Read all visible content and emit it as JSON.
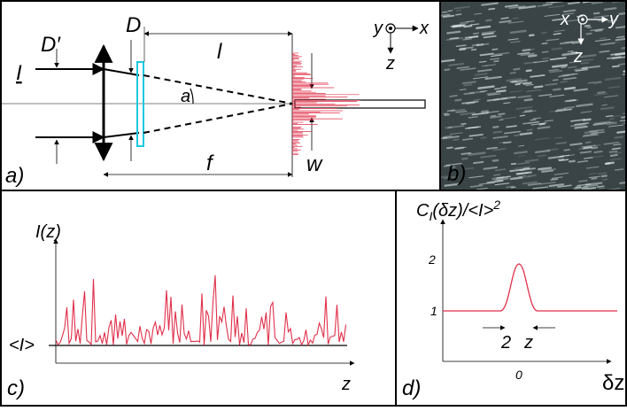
{
  "panels": {
    "a": {
      "tag": "a)",
      "beam_width_in": "D′",
      "beam_width_out": "D",
      "distance": "l",
      "input": "I",
      "angle": "a",
      "focal": "f",
      "spot": "w",
      "axis_y": "y",
      "axis_x": "x",
      "axis_z": "z"
    },
    "b": {
      "tag": "b)",
      "axis_x": "x",
      "axis_y": "y",
      "axis_z": "z"
    },
    "c": {
      "tag": "c)",
      "y_label": "I(z)",
      "mean_label": "<I>",
      "x_label": "z"
    },
    "d": {
      "tag": "d)",
      "y_label": "C",
      "y_label_sub": "I",
      "y_label_rest": "(δz)/<I>",
      "y_label_sup": "2",
      "ytick_high": "2",
      "ytick_low": "1",
      "xtick": "0",
      "width_num": "2",
      "width_var": "z",
      "x_label": "δz"
    }
  }
}
